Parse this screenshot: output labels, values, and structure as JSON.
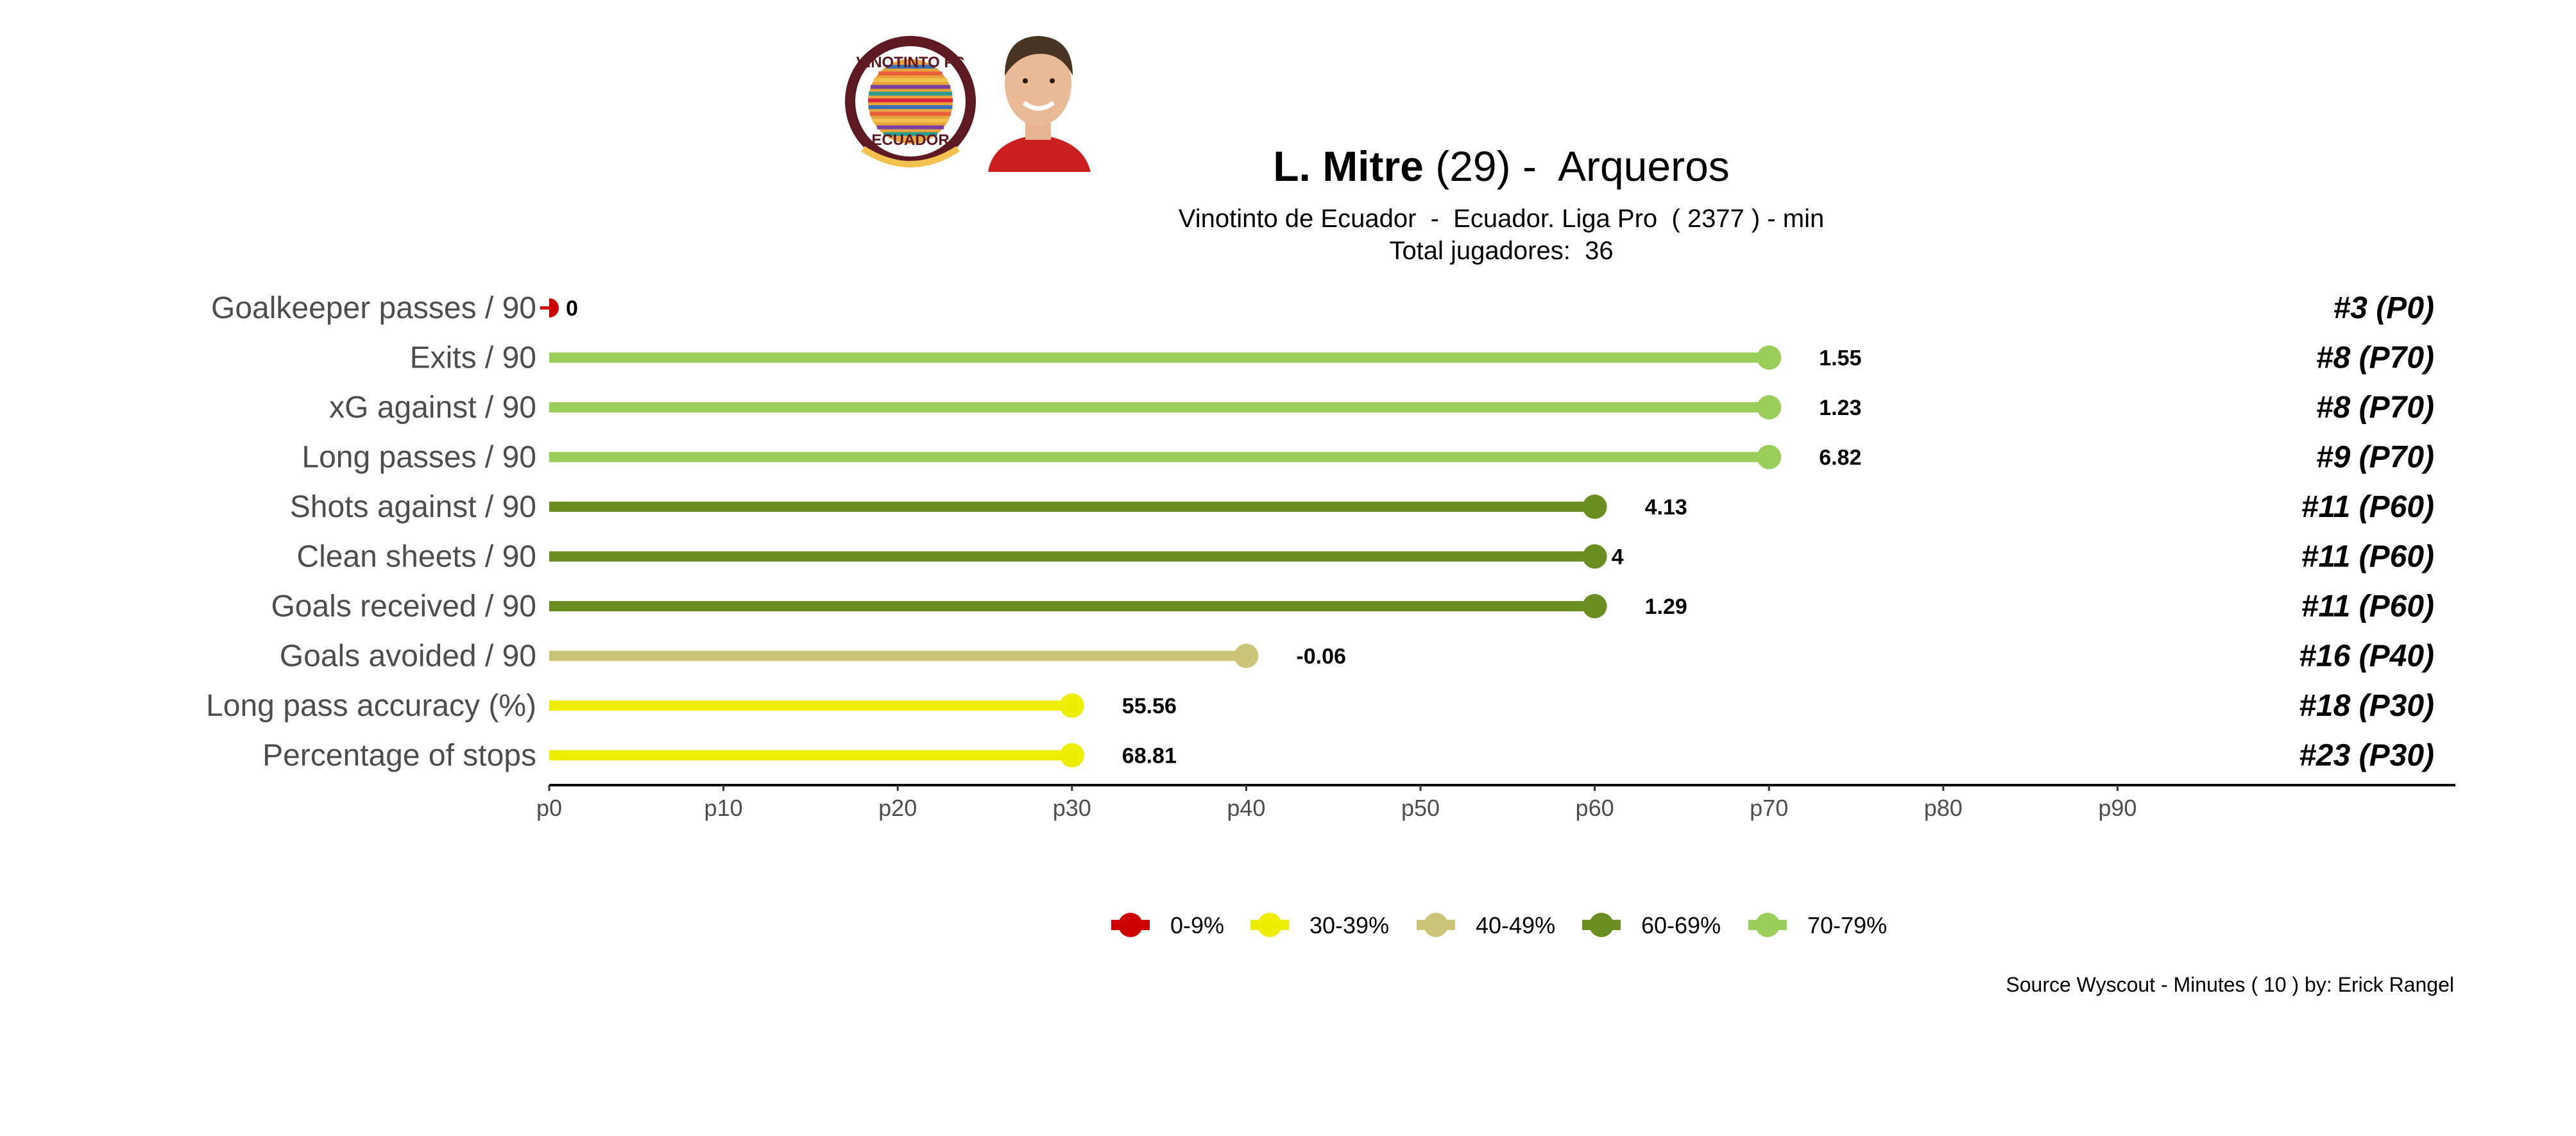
{
  "header": {
    "player_name": "L. Mitre",
    "player_age": "(29)",
    "title_sep": " -  ",
    "position": "Arqueros",
    "subtitle": "Vinotinto de Ecuador  -  Ecuador. Liga Pro  ( 2377 ) - min",
    "total_players": "Total jugadores:  36",
    "club_logo": {
      "text_top": "VINOTINTO FC",
      "text_bottom": "ECUADOR",
      "ring_color": "#5e1a22",
      "stripe_colors": [
        "#f2c14e",
        "#1f3d7a",
        "#d7263d"
      ]
    }
  },
  "chart_data": {
    "type": "lollipop",
    "x_ticks": [
      "p0",
      "p10",
      "p20",
      "p30",
      "p40",
      "p50",
      "p60",
      "p70",
      "p80",
      "p90"
    ],
    "xlim": [
      0,
      100
    ],
    "metrics": [
      {
        "label": "Goalkeeper passes / 90",
        "percentile": 0,
        "value": "0",
        "rank": "#3 (P0)",
        "band": "0-9%"
      },
      {
        "label": "Exits / 90",
        "percentile": 70,
        "value": "1.55",
        "rank": "#8 (P70)",
        "band": "70-79%"
      },
      {
        "label": "xG against / 90",
        "percentile": 70,
        "value": "1.23",
        "rank": "#8 (P70)",
        "band": "70-79%"
      },
      {
        "label": "Long passes / 90",
        "percentile": 70,
        "value": "6.82",
        "rank": "#9 (P70)",
        "band": "70-79%"
      },
      {
        "label": "Shots against / 90",
        "percentile": 60,
        "value": "4.13",
        "rank": "#11 (P60)",
        "band": "60-69%"
      },
      {
        "label": "Clean sheets / 90",
        "percentile": 60,
        "value": "4",
        "rank": "#11 (P60)",
        "band": "60-69%"
      },
      {
        "label": "Goals received / 90",
        "percentile": 60,
        "value": "1.29",
        "rank": "#11 (P60)",
        "band": "60-69%"
      },
      {
        "label": "Goals avoided / 90",
        "percentile": 40,
        "value": "-0.06",
        "rank": "#16 (P40)",
        "band": "40-49%"
      },
      {
        "label": "Long pass accuracy (%)",
        "percentile": 30,
        "value": "55.56",
        "rank": "#18 (P30)",
        "band": "30-39%"
      },
      {
        "label": "Percentage of stops",
        "percentile": 30,
        "value": "68.81",
        "rank": "#23 (P30)",
        "band": "30-39%"
      }
    ],
    "legend": [
      {
        "label": "0-9%",
        "color": "#cc0000"
      },
      {
        "label": "30-39%",
        "color": "#eeee00"
      },
      {
        "label": "40-49%",
        "color": "#cbc577"
      },
      {
        "label": "60-69%",
        "color": "#6b8e23"
      },
      {
        "label": "70-79%",
        "color": "#9acd5a"
      }
    ],
    "legend_position": "bottom",
    "grid": false
  },
  "footer": {
    "source": "Source Wyscout - Minutes ( 10 ) by: Erick Rangel"
  }
}
